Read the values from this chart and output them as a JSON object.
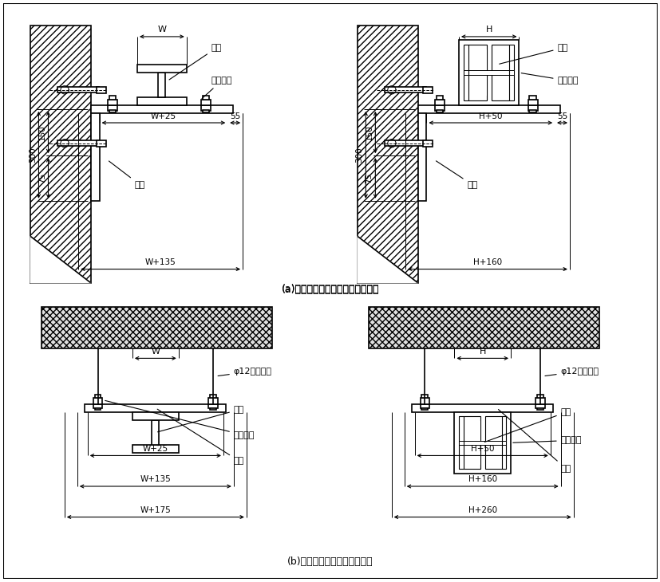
{
  "title_a": "(a)在墙体角锂支架上平、侧卧安装",
  "title_b": "(b)在楼板吨架上平、侧卧安装",
  "label_muline": "母线",
  "label_pingwo": "平卧压板",
  "label_cewo": "侧卧压板",
  "label_zhijia": "支架",
  "label_diaozhang": "吨架",
  "label_phi12_l": "φ12圆锂吨杆",
  "label_phi12_r": "φ12圆锂吨杆",
  "bg_color": "#ffffff",
  "line_color": "#000000"
}
